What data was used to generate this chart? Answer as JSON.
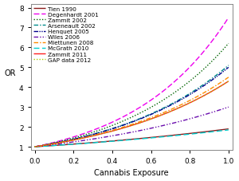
{
  "title": "",
  "xlabel": "Cannabis Exposure",
  "ylabel": "OR",
  "xlim": [
    -0.02,
    1.02
  ],
  "ylim": [
    0.85,
    8.2
  ],
  "xticks": [
    0.0,
    0.2,
    0.4,
    0.6,
    0.8,
    1.0
  ],
  "yticks": [
    1,
    2,
    3,
    4,
    5,
    6,
    7,
    8
  ],
  "series": [
    {
      "label": "Tien 1990",
      "color": "#8B1A1A",
      "linestyle": "solid",
      "endpoint": 1.9
    },
    {
      "label": "Degenhardt 2001",
      "color": "#EE00EE",
      "linestyle": "dashed",
      "endpoint": 7.5
    },
    {
      "label": "Zammit 2002",
      "color": "#006400",
      "linestyle": "dotted",
      "endpoint": 6.2
    },
    {
      "label": "Arseneault 2002",
      "color": "#008B8B",
      "linestyle": "dashdot",
      "endpoint": 5.1
    },
    {
      "label": "Henquet 2005",
      "color": "#00008B",
      "linestyle": "dashdotdot",
      "endpoint": 5.0
    },
    {
      "label": "Wiles 2006",
      "color": "#6A0DAD",
      "linestyle": "dashdotdot2",
      "endpoint": 3.0
    },
    {
      "label": "Miettunen 2008",
      "color": "#FF8C00",
      "linestyle": "dashdot2",
      "endpoint": 4.5
    },
    {
      "label": "McGrath 2010",
      "color": "#00CDCD",
      "linestyle": "dashed2",
      "endpoint": 1.85
    },
    {
      "label": "Zammit 2011",
      "color": "#FF2020",
      "linestyle": "solid",
      "endpoint": 4.3
    },
    {
      "label": "GAP data 2012",
      "color": "#AACC00",
      "linestyle": "dotted2",
      "endpoint": 4.3
    }
  ],
  "bg_color": "#FFFFFF",
  "legend_fontsize": 5.2,
  "axis_fontsize": 7,
  "tick_fontsize": 6.5
}
